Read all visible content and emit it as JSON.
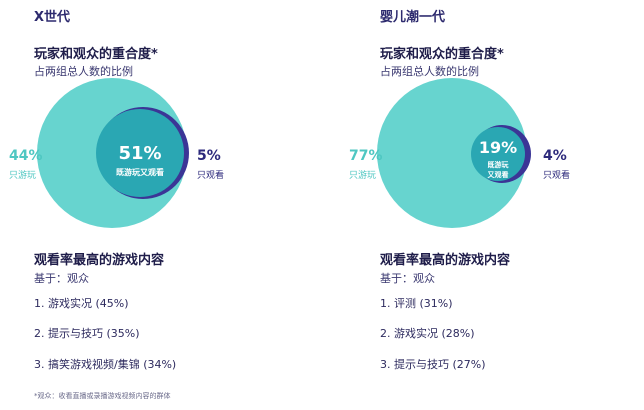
{
  "colors": {
    "play_only": "#67d4cf",
    "overlap": "#2aa7b3",
    "watch_only": "#3b3596",
    "play_label": "#4fc7c2",
    "watch_label": "#2d2a7c"
  },
  "footnote": "*观众：收看直播或录播游戏视频内容的群体",
  "panels": [
    {
      "generation": "X世代",
      "overlap_title": "玩家和观众的重合度*",
      "overlap_subtitle": "占两组总人数的比例",
      "chart_data": {
        "type": "venn",
        "sets": [
          {
            "label": "只游玩",
            "value": 44
          },
          {
            "label": "既游玩又观看",
            "value": 51
          },
          {
            "label": "只观看",
            "value": 5
          }
        ],
        "unit": "%"
      },
      "play_only_pct": "44%",
      "play_only_label": "只游玩",
      "both_pct": "51%",
      "both_label": "既游玩又观看",
      "watch_only_pct": "5%",
      "watch_only_label": "只观看",
      "content_title": "观看率最高的游戏内容",
      "base_line": "基于：观众",
      "top_content": [
        "1. 游戏实况 (45%)",
        "2. 提示与技巧 (35%)",
        "3. 搞笑游戏视频/集锦 (34%)"
      ]
    },
    {
      "generation": "婴儿潮一代",
      "overlap_title": "玩家和观众的重合度*",
      "overlap_subtitle": "占两组总人数的比例",
      "chart_data": {
        "type": "venn",
        "sets": [
          {
            "label": "只游玩",
            "value": 77
          },
          {
            "label": "既游玩又观看",
            "value": 19
          },
          {
            "label": "只观看",
            "value": 4
          }
        ],
        "unit": "%"
      },
      "play_only_pct": "77%",
      "play_only_label": "只游玩",
      "both_pct": "19%",
      "both_label_line1": "既游玩",
      "both_label_line2": "又观看",
      "watch_only_pct": "4%",
      "watch_only_label": "只观看",
      "content_title": "观看率最高的游戏内容",
      "base_line": "基于：观众",
      "top_content": [
        "1. 评测 (31%)",
        "2. 游戏实况 (28%)",
        "3. 提示与技巧 (27%)"
      ]
    }
  ]
}
